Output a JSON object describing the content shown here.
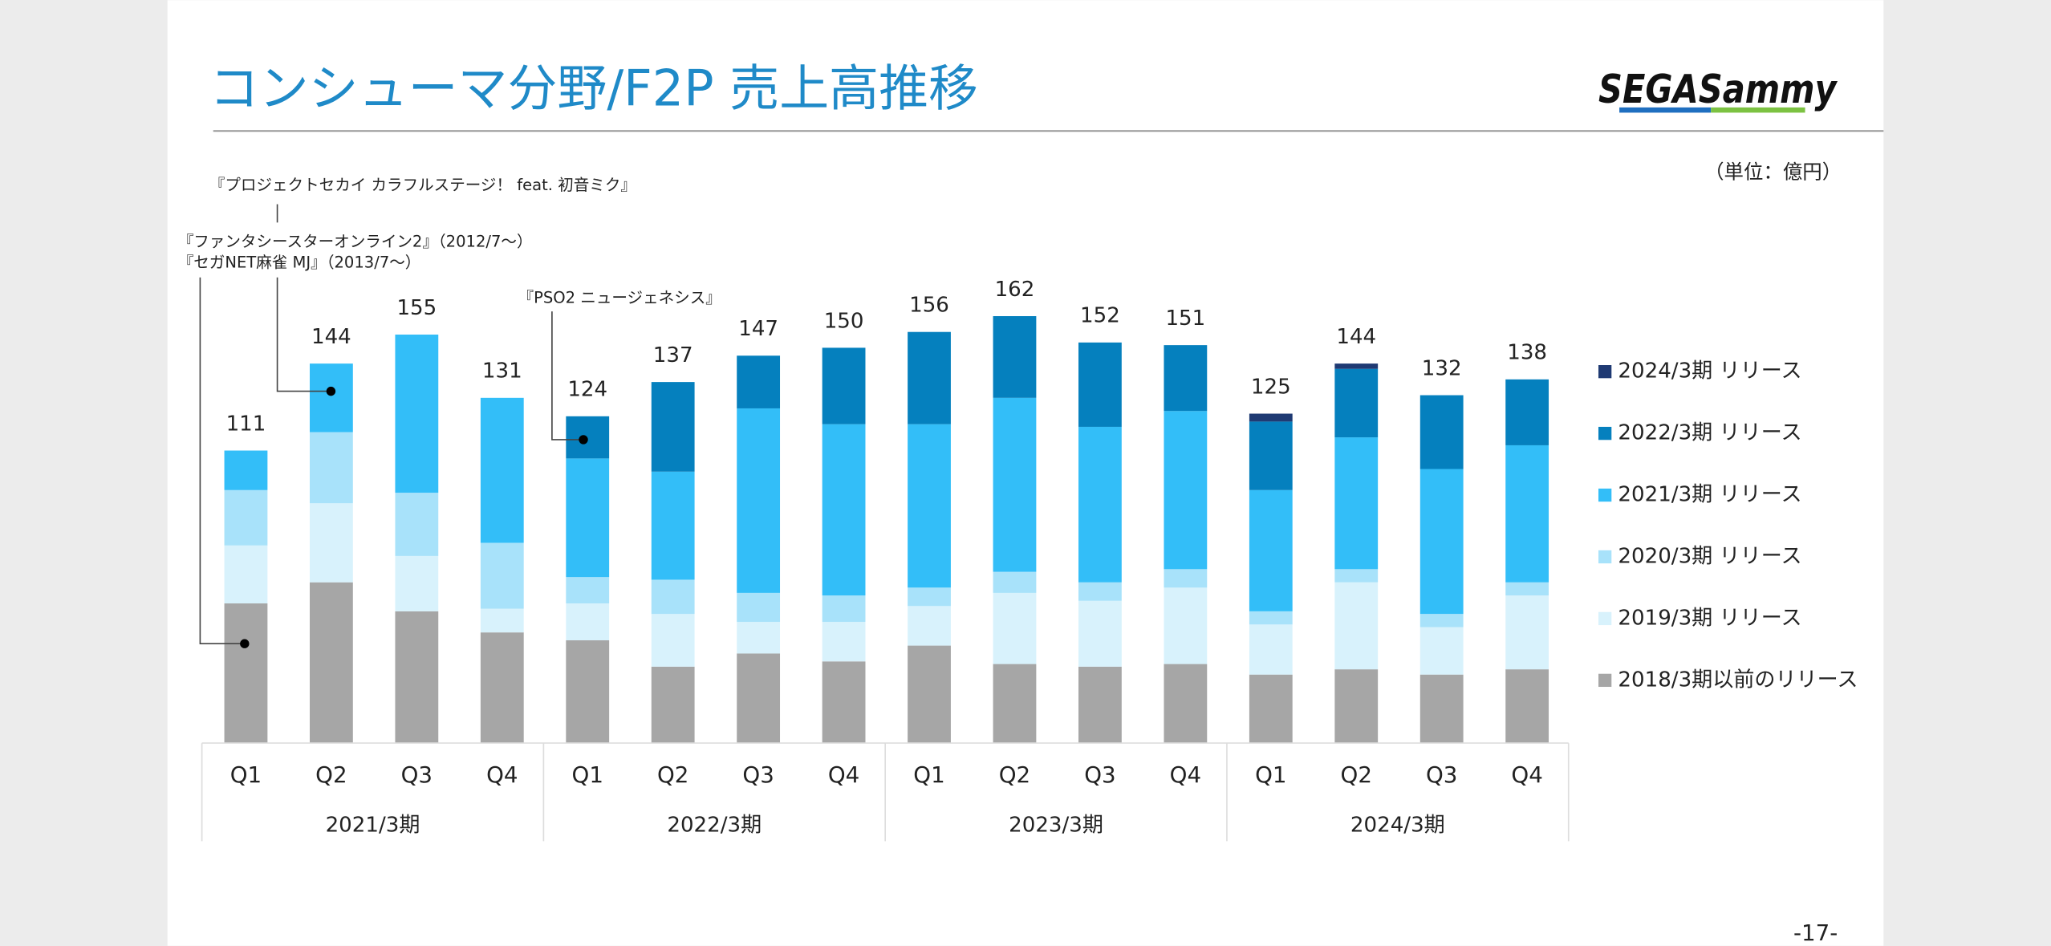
{
  "title": "コンシューマ分野/F2P  売上高推移",
  "logo": "SEGASammy",
  "unit": "（単位：億円）",
  "page_number": "-17-",
  "annotations": [
    "『プロジェクトセカイ カラフルステージ！ feat. 初音ミク』",
    "『ファンタシースターオンライン2』（2012/7～）",
    "『セガNET麻雀 MJ』（2013/7～）",
    "『PSO2 ニュージェネシス』"
  ],
  "chart_data": {
    "type": "bar",
    "stacked": true,
    "categories": [
      "Q1",
      "Q2",
      "Q3",
      "Q4",
      "Q1",
      "Q2",
      "Q3",
      "Q4",
      "Q1",
      "Q2",
      "Q3",
      "Q4",
      "Q1",
      "Q2",
      "Q3",
      "Q4"
    ],
    "groups": [
      "2021/3期",
      "2022/3期",
      "2023/3期",
      "2024/3期"
    ],
    "totals": [
      111,
      144,
      155,
      131,
      124,
      137,
      147,
      150,
      156,
      162,
      152,
      151,
      125,
      144,
      132,
      138
    ],
    "legend": "right",
    "series": [
      {
        "name": "2018/3期以前のリリース",
        "color": "#a6a6a6",
        "values": [
          53,
          61,
          50,
          42,
          39,
          29,
          34,
          31,
          37,
          30,
          29,
          30,
          26,
          28,
          26,
          28
        ]
      },
      {
        "name": "2019/3期 リリース",
        "color": "#d8f2fc",
        "values": [
          22,
          30,
          21,
          9,
          14,
          20,
          12,
          15,
          15,
          27,
          25,
          29,
          19,
          33,
          18,
          28
        ]
      },
      {
        "name": "2020/3期 リリース",
        "color": "#a8e2fa",
        "values": [
          21,
          27,
          24,
          25,
          10,
          13,
          11,
          10,
          7,
          8,
          7,
          7,
          5,
          5,
          5,
          5
        ]
      },
      {
        "name": "2021/3期 リリース",
        "color": "#33bef8",
        "values": [
          15,
          26,
          60,
          55,
          45,
          41,
          70,
          65,
          62,
          66,
          59,
          60,
          46,
          50,
          55,
          52
        ]
      },
      {
        "name": "2022/3期 リリース",
        "color": "#0580be",
        "values": [
          null,
          null,
          null,
          null,
          16,
          34,
          20,
          29,
          35,
          31,
          32,
          25,
          26,
          26,
          28,
          25
        ]
      },
      {
        "name": "2024/3期 リリース",
        "color": "#1f3a73",
        "values": [
          null,
          null,
          null,
          null,
          null,
          null,
          null,
          null,
          null,
          null,
          null,
          null,
          3,
          2,
          null,
          null
        ]
      }
    ]
  }
}
